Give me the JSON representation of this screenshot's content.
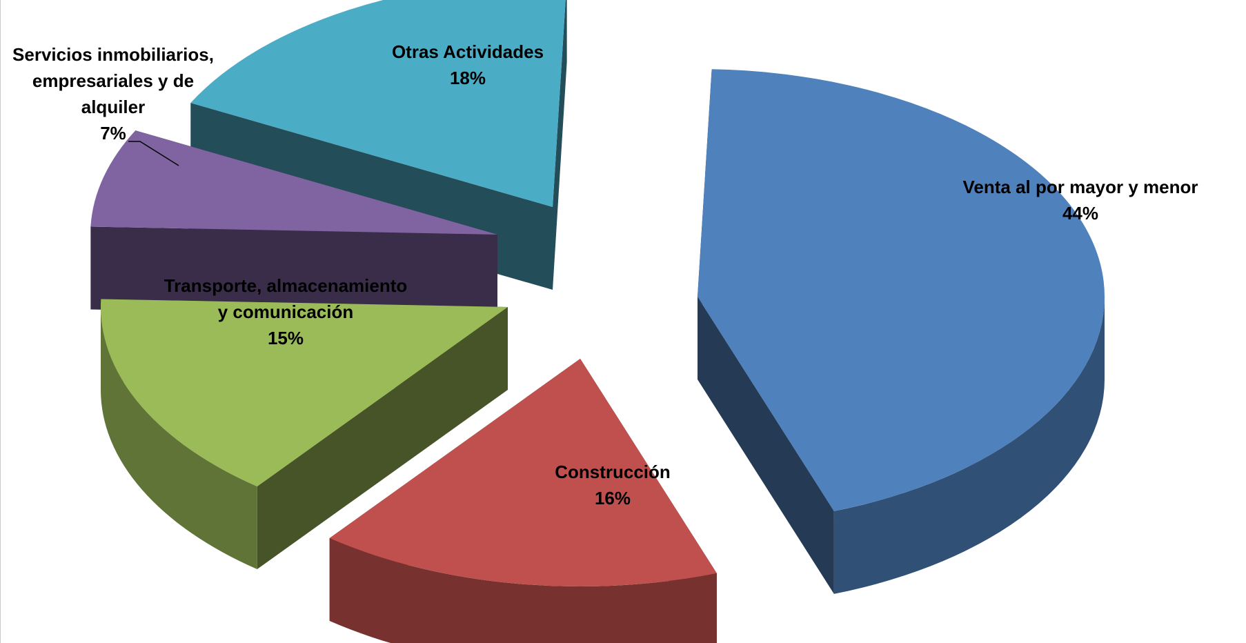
{
  "chart_data": {
    "type": "pie",
    "title": "",
    "style": "3d-exploded",
    "slices": [
      {
        "label": "Venta al por mayor y menor",
        "value": 44,
        "display": "44%",
        "color": "#4f81bd"
      },
      {
        "label": "Construcción",
        "value": 16,
        "display": "16%",
        "color": "#c0504d"
      },
      {
        "label": "Transporte, almacenamiento y comunicación",
        "value": 15,
        "display": "15%",
        "color": "#9bbb59"
      },
      {
        "label": "Servicios inmobiliarios, empresariales y de alquiler",
        "value": 7,
        "display": "7%",
        "color": "#8064a2"
      },
      {
        "label": "Otras Actividades",
        "value": 18,
        "display": "18%",
        "color": "#4bacc6"
      }
    ]
  }
}
